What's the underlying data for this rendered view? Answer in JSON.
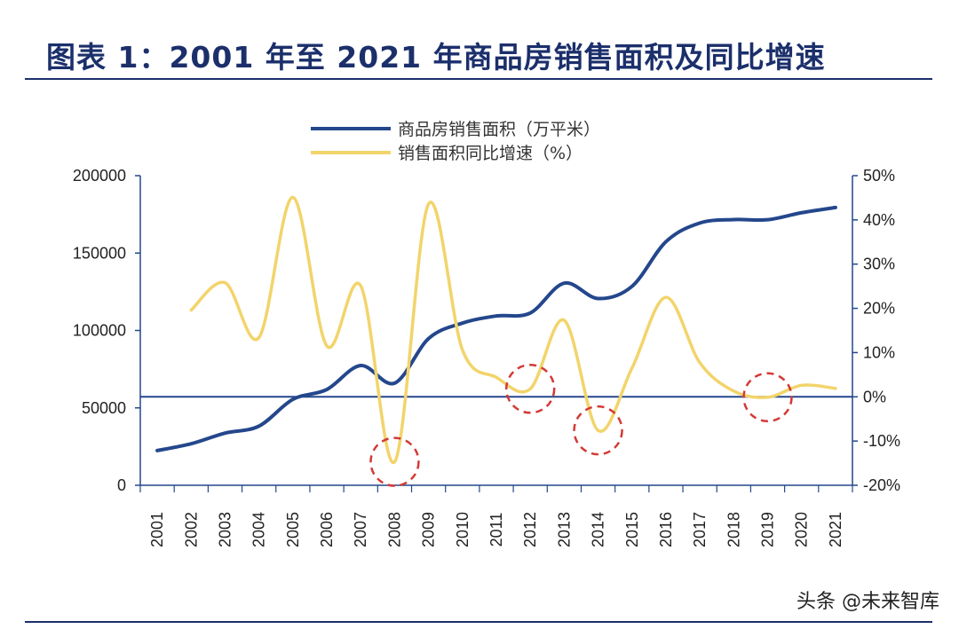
{
  "header": {
    "title": "图表 1：2001 年至 2021 年商品房销售面积及同比增速"
  },
  "watermark": "头条 @未来智库",
  "colors": {
    "area": "#24478c",
    "growth": "#f2d46b",
    "highlight": "#d23a36",
    "rule": "#1b2f6b"
  },
  "chart_data": {
    "type": "line",
    "title": "",
    "categories": [
      "2001",
      "2002",
      "2003",
      "2004",
      "2005",
      "2006",
      "2007",
      "2008",
      "2009",
      "2010",
      "2011",
      "2012",
      "2013",
      "2014",
      "2015",
      "2016",
      "2017",
      "2018",
      "2019",
      "2020",
      "2021"
    ],
    "series": [
      {
        "name": "商品房销售面积（万平米）",
        "axis": "left",
        "color": "#24478c",
        "values": [
          22412,
          26808,
          33718,
          38232,
          55486,
          61857,
          77355,
          65969,
          94755,
          104765,
          109367,
          111304,
          130551,
          120649,
          128495,
          157349,
          169408,
          171654,
          171558,
          176086,
          179433
        ]
      },
      {
        "name": "销售面积同比增速（%）",
        "axis": "right",
        "color": "#f2d46b",
        "values": [
          null,
          19.6,
          25.8,
          13.4,
          45.1,
          11.5,
          25.1,
          -14.7,
          43.6,
          10.6,
          4.4,
          1.8,
          17.3,
          -7.6,
          6.5,
          22.5,
          7.7,
          1.3,
          -0.1,
          2.6,
          1.9
        ]
      }
    ],
    "y_left": {
      "ylim": [
        0,
        200000
      ],
      "ticks": [
        "0",
        "50000",
        "100000",
        "150000",
        "200000"
      ]
    },
    "y_right": {
      "ylim": [
        -20,
        50
      ],
      "ticks": [
        "-20%",
        "-10%",
        "0%",
        "10%",
        "20%",
        "30%",
        "40%",
        "50%"
      ]
    },
    "zero_line": 0,
    "highlights": [
      "2008",
      "2012",
      "2014",
      "2019"
    ],
    "legend_position": "top-center",
    "grid": false
  }
}
